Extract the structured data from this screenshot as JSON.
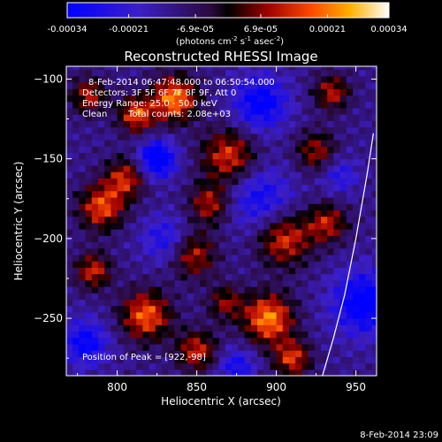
{
  "colorbar": {
    "ticks": [
      "-0.00034",
      "-0.00021",
      "-6.9e-05",
      "6.9e-05",
      "0.00021",
      "0.00034"
    ],
    "values": [
      -0.00034,
      -0.00021,
      -6.9e-05,
      6.9e-05,
      0.00021,
      0.00034
    ],
    "unit_main": "(photons cm",
    "unit_sup1": "-2",
    "unit_mid": " s",
    "unit_sup2": "-1",
    "unit_end": " asec",
    "unit_sup3": "-2",
    "unit_close": ")"
  },
  "footer_timestamp": "8-Feb-2014 23:09",
  "chart_data": {
    "type": "heatmap",
    "title": "Reconstructed RHESSI Image",
    "xlabel": "Heliocentric X (arcsec)",
    "ylabel": "Heliocentric Y (arcsec)",
    "xlim": [
      768,
      963
    ],
    "ylim": [
      -286,
      -92
    ],
    "x_ticks": [
      800,
      850,
      900,
      950
    ],
    "x_tick_labels": [
      "800",
      "850",
      "900",
      "950"
    ],
    "y_ticks": [
      -100,
      -150,
      -200,
      -250
    ],
    "y_tick_labels": [
      "−100",
      "−150",
      "−200",
      "−250"
    ],
    "clim": [
      -0.00034,
      0.00034
    ],
    "colormap": "blue-purple-black-red-orange-yellow-white",
    "annotations": {
      "time": "8-Feb-2014 06:47:48.000 to 06:50:54.000",
      "detectors": "Detectors: 3F 5F 6F 7F 8F 9F, Att 0",
      "energy": "Energy Range: 25.0 - 50.0 keV",
      "clean_label": "Clean",
      "counts": "Total counts: 2.08e+03",
      "peak": "Position of Peak = [922,-98]"
    },
    "peak_position": [
      922,
      -98
    ],
    "limb_curve": {
      "x": [
        961,
        957,
        950,
        943,
        936,
        929
      ],
      "y": [
        -134,
        -160,
        -200,
        -235,
        -262,
        -286
      ]
    },
    "blobs": [
      {
        "x": 836,
        "y": -112,
        "sigma": 10,
        "amp": 0.00034
      },
      {
        "x": 812,
        "y": -122,
        "sigma": 8,
        "amp": 0.00028
      },
      {
        "x": 782,
        "y": -110,
        "sigma": 8,
        "amp": 0.00022
      },
      {
        "x": 870,
        "y": -148,
        "sigma": 12,
        "amp": 0.00026
      },
      {
        "x": 858,
        "y": -178,
        "sigma": 9,
        "amp": 0.00022
      },
      {
        "x": 805,
        "y": -162,
        "sigma": 9,
        "amp": 0.00024
      },
      {
        "x": 790,
        "y": -180,
        "sigma": 10,
        "amp": 0.00028
      },
      {
        "x": 785,
        "y": -220,
        "sigma": 8,
        "amp": 0.00024
      },
      {
        "x": 848,
        "y": -210,
        "sigma": 10,
        "amp": 0.00022
      },
      {
        "x": 905,
        "y": -200,
        "sigma": 12,
        "amp": 0.00026
      },
      {
        "x": 932,
        "y": -190,
        "sigma": 9,
        "amp": 0.00022
      },
      {
        "x": 818,
        "y": -248,
        "sigma": 11,
        "amp": 0.0003
      },
      {
        "x": 850,
        "y": -270,
        "sigma": 9,
        "amp": 0.00024
      },
      {
        "x": 895,
        "y": -250,
        "sigma": 11,
        "amp": 0.00034
      },
      {
        "x": 910,
        "y": -275,
        "sigma": 8,
        "amp": 0.00026
      },
      {
        "x": 935,
        "y": -108,
        "sigma": 8,
        "amp": 0.00022
      },
      {
        "x": 925,
        "y": -145,
        "sigma": 9,
        "amp": 0.0002
      },
      {
        "x": 868,
        "y": -240,
        "sigma": 8,
        "amp": 0.00018
      },
      {
        "x": 825,
        "y": -150,
        "sigma": 8,
        "amp": -0.00032
      },
      {
        "x": 890,
        "y": -115,
        "sigma": 12,
        "amp": -0.00024
      },
      {
        "x": 890,
        "y": -175,
        "sigma": 14,
        "amp": -0.00018
      },
      {
        "x": 955,
        "y": -240,
        "sigma": 14,
        "amp": -0.00026
      },
      {
        "x": 780,
        "y": -265,
        "sigma": 10,
        "amp": -0.00022
      },
      {
        "x": 830,
        "y": -200,
        "sigma": 10,
        "amp": -0.00016
      },
      {
        "x": 940,
        "y": -160,
        "sigma": 8,
        "amp": -0.00014
      },
      {
        "x": 875,
        "y": -280,
        "sigma": 8,
        "amp": -0.00018
      }
    ]
  }
}
